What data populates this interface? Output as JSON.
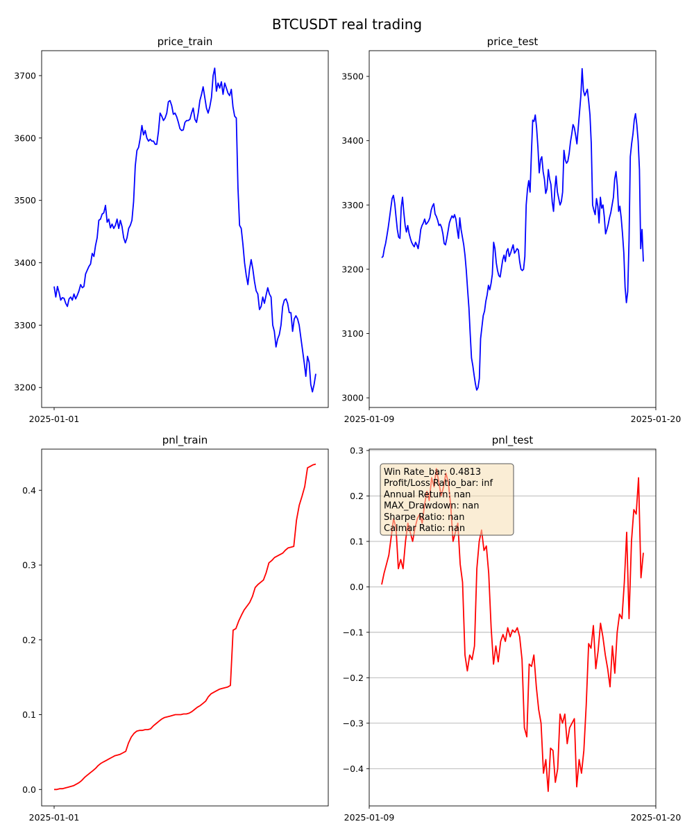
{
  "figure": {
    "suptitle": "BTCUSDT real trading"
  },
  "colors": {
    "price_line": "#0000ff",
    "pnl_line": "#ff0000",
    "info_box_fill": "#f5deb3",
    "grid": "#b0b0b0"
  },
  "chart_data": [
    {
      "id": "price_train",
      "type": "line",
      "title": "price_train",
      "xlabel": "",
      "ylabel": "",
      "x_ticks": [
        "2025-01-01"
      ],
      "y_ticks": [
        3200,
        3300,
        3400,
        3500,
        3600,
        3700
      ],
      "ylim": [
        3168,
        3740
      ],
      "grid": false,
      "series": [
        {
          "color": "#0000ff",
          "values": [
            3362,
            3345,
            3362,
            3352,
            3340,
            3344,
            3343,
            3335,
            3330,
            3342,
            3345,
            3340,
            3350,
            3342,
            3348,
            3355,
            3365,
            3360,
            3362,
            3382,
            3388,
            3394,
            3398,
            3415,
            3410,
            3428,
            3440,
            3468,
            3470,
            3478,
            3480,
            3492,
            3465,
            3470,
            3456,
            3462,
            3455,
            3460,
            3470,
            3455,
            3468,
            3458,
            3440,
            3432,
            3440,
            3455,
            3460,
            3468,
            3498,
            3555,
            3580,
            3585,
            3600,
            3620,
            3605,
            3612,
            3600,
            3595,
            3598,
            3595,
            3595,
            3590,
            3590,
            3610,
            3640,
            3635,
            3628,
            3632,
            3640,
            3658,
            3660,
            3652,
            3638,
            3640,
            3634,
            3625,
            3615,
            3612,
            3613,
            3625,
            3628,
            3628,
            3630,
            3640,
            3648,
            3630,
            3625,
            3640,
            3660,
            3670,
            3682,
            3665,
            3648,
            3640,
            3650,
            3665,
            3700,
            3712,
            3675,
            3688,
            3680,
            3690,
            3670,
            3688,
            3680,
            3672,
            3668,
            3678,
            3650,
            3635,
            3632,
            3520,
            3460,
            3455,
            3430,
            3400,
            3380,
            3365,
            3390,
            3405,
            3390,
            3370,
            3355,
            3350,
            3325,
            3330,
            3345,
            3335,
            3348,
            3360,
            3350,
            3345,
            3300,
            3290,
            3265,
            3278,
            3285,
            3300,
            3330,
            3340,
            3342,
            3335,
            3320,
            3320,
            3290,
            3310,
            3315,
            3310,
            3300,
            3280,
            3260,
            3240,
            3218,
            3250,
            3240,
            3205,
            3193,
            3205,
            3222
          ]
        }
      ]
    },
    {
      "id": "price_test",
      "type": "line",
      "title": "price_test",
      "xlabel": "",
      "ylabel": "",
      "x_ticks": [
        "2025-01-09",
        "2025-01-20"
      ],
      "y_ticks": [
        3000,
        3100,
        3200,
        3300,
        3400,
        3500
      ],
      "ylim": [
        2985,
        3540
      ],
      "grid": false,
      "series": [
        {
          "color": "#0000ff",
          "values": [
            3218,
            3220,
            3232,
            3240,
            3252,
            3265,
            3280,
            3295,
            3310,
            3315,
            3302,
            3282,
            3262,
            3250,
            3248,
            3296,
            3312,
            3288,
            3268,
            3258,
            3268,
            3256,
            3248,
            3242,
            3238,
            3235,
            3242,
            3238,
            3232,
            3245,
            3262,
            3268,
            3272,
            3278,
            3270,
            3272,
            3275,
            3280,
            3292,
            3298,
            3302,
            3286,
            3282,
            3276,
            3268,
            3270,
            3265,
            3255,
            3240,
            3238,
            3248,
            3260,
            3272,
            3278,
            3283,
            3280,
            3285,
            3278,
            3262,
            3248,
            3280,
            3262,
            3250,
            3238,
            3222,
            3198,
            3168,
            3140,
            3100,
            3062,
            3050,
            3035,
            3022,
            3012,
            3016,
            3030,
            3092,
            3110,
            3128,
            3135,
            3150,
            3160,
            3175,
            3168,
            3178,
            3192,
            3242,
            3232,
            3210,
            3198,
            3190,
            3188,
            3202,
            3215,
            3222,
            3212,
            3228,
            3232,
            3220,
            3225,
            3232,
            3238,
            3225,
            3228,
            3232,
            3230,
            3212,
            3200,
            3198,
            3200,
            3220,
            3300,
            3325,
            3338,
            3320,
            3380,
            3432,
            3430,
            3440,
            3420,
            3390,
            3350,
            3370,
            3375,
            3352,
            3340,
            3318,
            3325,
            3355,
            3340,
            3332,
            3305,
            3290,
            3325,
            3345,
            3320,
            3310,
            3300,
            3305,
            3320,
            3385,
            3370,
            3365,
            3368,
            3380,
            3398,
            3410,
            3425,
            3420,
            3408,
            3395,
            3420,
            3445,
            3470,
            3512,
            3478,
            3470,
            3475,
            3480,
            3462,
            3440,
            3395,
            3300,
            3292,
            3285,
            3310,
            3298,
            3272,
            3312,
            3295,
            3300,
            3282,
            3255,
            3262,
            3270,
            3280,
            3288,
            3300,
            3312,
            3340,
            3352,
            3330,
            3290,
            3298,
            3280,
            3255,
            3225,
            3172,
            3148,
            3165,
            3245,
            3375,
            3395,
            3410,
            3432,
            3442,
            3425,
            3400,
            3355,
            3232,
            3262,
            3212
          ]
        }
      ]
    },
    {
      "id": "pnl_train",
      "type": "line",
      "title": "pnl_train",
      "xlabel": "",
      "ylabel": "",
      "x_ticks": [
        "2025-01-01"
      ],
      "y_ticks": [
        0.0,
        0.1,
        0.2,
        0.3,
        0.4
      ],
      "ylim": [
        -0.022,
        0.455
      ],
      "grid": false,
      "series": [
        {
          "color": "#ff0000",
          "values": [
            0.0,
            0.0,
            0.001,
            0.001,
            0.002,
            0.003,
            0.004,
            0.005,
            0.007,
            0.009,
            0.012,
            0.016,
            0.019,
            0.022,
            0.025,
            0.028,
            0.032,
            0.035,
            0.037,
            0.039,
            0.041,
            0.043,
            0.045,
            0.046,
            0.047,
            0.049,
            0.051,
            0.062,
            0.07,
            0.075,
            0.078,
            0.079,
            0.079,
            0.08,
            0.08,
            0.081,
            0.085,
            0.088,
            0.091,
            0.094,
            0.096,
            0.097,
            0.098,
            0.099,
            0.1,
            0.1,
            0.1,
            0.101,
            0.101,
            0.102,
            0.104,
            0.107,
            0.11,
            0.112,
            0.115,
            0.118,
            0.124,
            0.128,
            0.13,
            0.132,
            0.134,
            0.135,
            0.136,
            0.137,
            0.139,
            0.213,
            0.215,
            0.225,
            0.233,
            0.24,
            0.245,
            0.25,
            0.258,
            0.27,
            0.274,
            0.277,
            0.28,
            0.29,
            0.303,
            0.306,
            0.31,
            0.312,
            0.314,
            0.316,
            0.32,
            0.323,
            0.324,
            0.325,
            0.36,
            0.38,
            0.392,
            0.405,
            0.43,
            0.432,
            0.434,
            0.435
          ]
        }
      ]
    },
    {
      "id": "pnl_test",
      "type": "line",
      "title": "pnl_test",
      "xlabel": "",
      "ylabel": "",
      "x_ticks": [
        "2025-01-09",
        "2025-01-20"
      ],
      "y_ticks": [
        -0.4,
        -0.3,
        -0.2,
        -0.1,
        0.0,
        0.1,
        0.2,
        0.3
      ],
      "ylim": [
        -0.482,
        0.303
      ],
      "grid": true,
      "annotation": {
        "lines": [
          "Win Rate_bar: 0.4813",
          "Profit/Loss Ratio_bar: inf",
          "Annual Return: nan",
          "MAX_Drawdown: nan",
          "Sharpe Ratio: nan",
          "Calmar Ratio: nan"
        ],
        "placement": "top-left"
      },
      "series": [
        {
          "color": "#ff0000",
          "values": [
            0.005,
            0.03,
            0.05,
            0.07,
            0.11,
            0.15,
            0.13,
            0.04,
            0.06,
            0.04,
            0.1,
            0.14,
            0.12,
            0.1,
            0.13,
            0.15,
            0.16,
            0.14,
            0.18,
            0.21,
            0.19,
            0.24,
            0.22,
            0.26,
            0.23,
            0.2,
            0.22,
            0.25,
            0.23,
            0.18,
            0.1,
            0.12,
            0.14,
            0.05,
            0.01,
            -0.15,
            -0.185,
            -0.15,
            -0.16,
            -0.13,
            0.04,
            0.1,
            0.125,
            0.08,
            0.09,
            0.03,
            -0.09,
            -0.17,
            -0.13,
            -0.165,
            -0.12,
            -0.105,
            -0.12,
            -0.09,
            -0.11,
            -0.095,
            -0.1,
            -0.09,
            -0.11,
            -0.16,
            -0.31,
            -0.33,
            -0.17,
            -0.175,
            -0.15,
            -0.22,
            -0.27,
            -0.3,
            -0.41,
            -0.38,
            -0.45,
            -0.355,
            -0.36,
            -0.43,
            -0.4,
            -0.28,
            -0.3,
            -0.28,
            -0.345,
            -0.31,
            -0.3,
            -0.29,
            -0.44,
            -0.38,
            -0.41,
            -0.36,
            -0.26,
            -0.125,
            -0.135,
            -0.085,
            -0.18,
            -0.14,
            -0.08,
            -0.11,
            -0.15,
            -0.18,
            -0.22,
            -0.13,
            -0.19,
            -0.1,
            -0.06,
            -0.07,
            0.01,
            0.12,
            -0.07,
            0.1,
            0.17,
            0.16,
            0.24,
            0.02,
            0.075
          ]
        }
      ]
    }
  ]
}
